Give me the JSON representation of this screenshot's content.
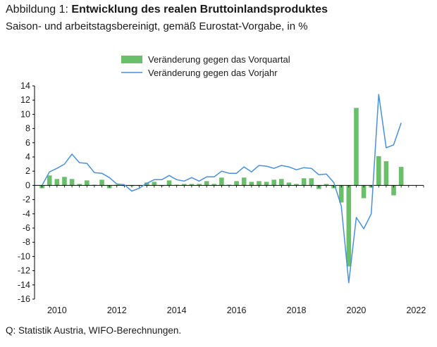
{
  "header": {
    "title_prefix": "Abbildung 1: ",
    "title_main": "Entwicklung des realen Bruttoinlandsproduktes",
    "subtitle": "Saison- und arbeitstagsbereinigt, gemäß Eurostat-Vorgabe, in %"
  },
  "footer": {
    "source": "Q: Statistik Austria, WIFO-Berechnungen."
  },
  "colors": {
    "bars": "#6abf6a",
    "line": "#4a90d9",
    "axis": "#000000"
  },
  "chart_data": {
    "type": "bar",
    "title": "",
    "xlabel": "",
    "ylabel": "",
    "ylim": [
      -16,
      14
    ],
    "yticks": [
      14,
      12,
      10,
      8,
      6,
      4,
      2,
      0,
      -2,
      -4,
      -6,
      -8,
      -10,
      -12,
      -14,
      -16
    ],
    "xlim": [
      2009.25,
      2022.25
    ],
    "xticks": [
      "2010",
      "2012",
      "2014",
      "2016",
      "2018",
      "2020",
      "2022"
    ],
    "legend_position": "top-center",
    "x": [
      2009.5,
      2009.75,
      2010.0,
      2010.25,
      2010.5,
      2010.75,
      2011.0,
      2011.25,
      2011.5,
      2011.75,
      2012.0,
      2012.25,
      2012.5,
      2012.75,
      2013.0,
      2013.25,
      2013.5,
      2013.75,
      2014.0,
      2014.25,
      2014.5,
      2014.75,
      2015.0,
      2015.25,
      2015.5,
      2015.75,
      2016.0,
      2016.25,
      2016.5,
      2016.75,
      2017.0,
      2017.25,
      2017.5,
      2017.75,
      2018.0,
      2018.25,
      2018.5,
      2018.75,
      2019.0,
      2019.25,
      2019.5,
      2019.75,
      2020.0,
      2020.25,
      2020.5,
      2020.75,
      2021.0,
      2021.25,
      2021.5
    ],
    "series": [
      {
        "name": "Veränderung gegen das Vorquartal",
        "kind": "bar",
        "values": [
          -0.4,
          1.4,
          0.9,
          1.2,
          0.9,
          0.2,
          0.7,
          0.1,
          0.8,
          -0.4,
          0.1,
          -0.1,
          -0.1,
          0.0,
          0.4,
          0.5,
          -0.1,
          0.7,
          0.1,
          0.2,
          0.2,
          0.2,
          0.6,
          0.2,
          1.1,
          0.1,
          0.6,
          1.1,
          0.5,
          0.6,
          0.5,
          0.8,
          0.9,
          0.4,
          0.2,
          1.0,
          1.0,
          -0.5,
          0.2,
          -0.4,
          -2.4,
          -11.4,
          10.9,
          -1.8,
          -0.3,
          4.1,
          3.4,
          -1.4,
          2.6
        ]
      },
      {
        "name": "Veränderung gegen das Vorjahr",
        "kind": "line",
        "values": [
          0.0,
          1.9,
          2.4,
          3.0,
          4.4,
          3.2,
          3.1,
          1.8,
          1.7,
          1.1,
          0.2,
          0.1,
          -0.8,
          -0.4,
          0.3,
          0.8,
          0.8,
          1.4,
          0.8,
          0.6,
          1.1,
          0.6,
          1.2,
          1.2,
          2.0,
          1.7,
          1.7,
          2.6,
          1.9,
          2.8,
          2.7,
          2.4,
          2.8,
          2.6,
          2.2,
          2.5,
          2.4,
          1.5,
          1.6,
          0.4,
          -2.9,
          -13.7,
          -4.5,
          -6.1,
          -4.0,
          12.8,
          5.3,
          5.7,
          8.8
        ]
      }
    ]
  }
}
